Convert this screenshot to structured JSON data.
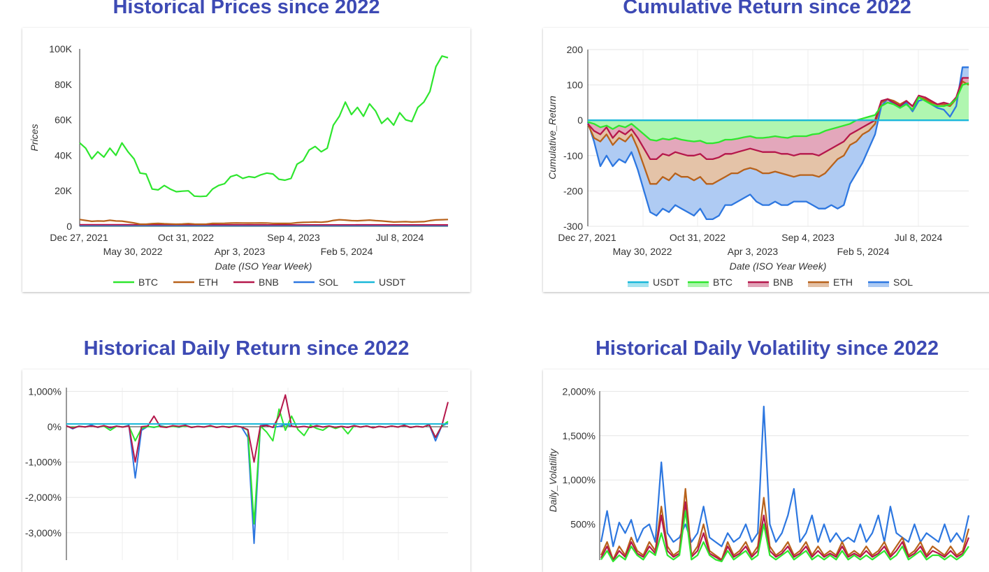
{
  "titles": {
    "prices": "Historical Prices since 2022",
    "cumret": "Cumulative Return since 2022",
    "dret": "Historical Daily Return since 2022",
    "dvol": "Historical Daily Volatility since 2022"
  },
  "colors": {
    "BTC": "#2ee62e",
    "ETH": "#b8621b",
    "BNB": "#b5174b",
    "SOL": "#2d77e0",
    "USDT": "#1ab8d9"
  },
  "x_ticks_upper": [
    "Dec 27, 2021",
    "Oct 31, 2022",
    "Sep 4, 2023",
    "Jul 8, 2024"
  ],
  "x_ticks_lower": [
    "May 30, 2022",
    "Apr 3, 2023",
    "Feb 5, 2024"
  ],
  "chart_data": [
    {
      "type": "line",
      "title": "Historical Prices since 2022",
      "xlabel": "Date (ISO Year Week)",
      "ylabel": "Prices",
      "ylim": [
        0,
        100000
      ],
      "y_ticks": [
        "0",
        "20K",
        "40K",
        "60K",
        "80K",
        "100K"
      ],
      "x_range": [
        "Dec 27, 2021",
        "Dec 2024"
      ],
      "legend": "bottom",
      "legend_order": [
        "BTC",
        "ETH",
        "BNB",
        "SOL",
        "USDT"
      ],
      "series": [
        {
          "name": "BTC",
          "values": [
            47000,
            44000,
            38000,
            42000,
            39000,
            44000,
            40000,
            47000,
            42000,
            38000,
            30000,
            29500,
            21000,
            20500,
            23000,
            21000,
            19500,
            19800,
            20000,
            17000,
            16800,
            17000,
            21000,
            23000,
            24000,
            28000,
            29000,
            27000,
            28000,
            27500,
            29000,
            30000,
            29500,
            26500,
            26000,
            27000,
            35000,
            37000,
            43000,
            45000,
            42000,
            44000,
            57000,
            62000,
            70000,
            63000,
            67000,
            62000,
            69000,
            65000,
            58000,
            61000,
            57000,
            64000,
            60000,
            59000,
            67000,
            70000,
            76000,
            90000,
            96000,
            95000
          ]
        },
        {
          "name": "ETH",
          "values": [
            3800,
            3300,
            2800,
            3000,
            2900,
            3400,
            3000,
            2900,
            2400,
            1900,
            1200,
            1200,
            1500,
            1600,
            1400,
            1300,
            1200,
            1300,
            1500,
            1250,
            1200,
            1250,
            1600,
            1650,
            1700,
            1800,
            1900,
            1850,
            1800,
            1850,
            1900,
            1850,
            1650,
            1600,
            1600,
            1650,
            2000,
            2200,
            2300,
            2400,
            2300,
            2600,
            3300,
            3700,
            3500,
            3200,
            3100,
            3300,
            3500,
            3200,
            3000,
            2700,
            2400,
            2500,
            2600,
            2400,
            2500,
            2600,
            3200,
            3600,
            3700,
            3800
          ]
        }
      ]
    },
    {
      "type": "area",
      "title": "Cumulative Return since 2022",
      "xlabel": "Date (ISO Year Week)",
      "ylabel": "Cumulative_Return",
      "ylim": [
        -300,
        200
      ],
      "y_ticks": [
        "-300",
        "-200",
        "-100",
        "0",
        "100",
        "200"
      ],
      "legend": "bottom",
      "legend_order": [
        "USDT",
        "BTC",
        "BNB",
        "ETH",
        "SOL"
      ],
      "series": [
        {
          "name": "SOL",
          "values": [
            -5,
            -60,
            -130,
            -100,
            -130,
            -110,
            -120,
            -90,
            -140,
            -200,
            -260,
            -270,
            -250,
            -260,
            -240,
            -250,
            -260,
            -270,
            -250,
            -280,
            -280,
            -270,
            -240,
            -240,
            -230,
            -220,
            -210,
            -230,
            -240,
            -240,
            -230,
            -240,
            -240,
            -230,
            -230,
            -230,
            -240,
            -250,
            -250,
            -240,
            -250,
            -240,
            -180,
            -150,
            -120,
            -80,
            -40,
            40,
            60,
            45,
            35,
            50,
            25,
            55,
            60,
            45,
            35,
            30,
            10,
            40,
            150,
            150
          ]
        },
        {
          "name": "ETH",
          "values": [
            -10,
            -50,
            -60,
            -40,
            -70,
            -50,
            -60,
            -40,
            -80,
            -130,
            -180,
            -180,
            -160,
            -170,
            -150,
            -160,
            -160,
            -170,
            -160,
            -180,
            -180,
            -170,
            -160,
            -150,
            -150,
            -140,
            -135,
            -140,
            -150,
            -150,
            -145,
            -150,
            -155,
            -160,
            -155,
            -155,
            -155,
            -160,
            -150,
            -130,
            -110,
            -100,
            -70,
            -60,
            -40,
            -30,
            -10,
            50,
            60,
            55,
            45,
            55,
            40,
            65,
            60,
            50,
            45,
            45,
            40,
            60,
            110,
            100
          ]
        },
        {
          "name": "BNB",
          "values": [
            -10,
            -30,
            -40,
            -20,
            -50,
            -30,
            -40,
            -25,
            -50,
            -80,
            -110,
            -110,
            -95,
            -100,
            -90,
            -95,
            -100,
            -100,
            -95,
            -110,
            -110,
            -105,
            -95,
            -95,
            -90,
            -85,
            -80,
            -85,
            -90,
            -90,
            -90,
            -95,
            -95,
            -100,
            -95,
            -95,
            -95,
            -100,
            -90,
            -80,
            -70,
            -60,
            -40,
            -30,
            -20,
            -10,
            0,
            55,
            60,
            50,
            40,
            55,
            40,
            70,
            65,
            55,
            45,
            50,
            45,
            65,
            120,
            120
          ]
        },
        {
          "name": "BTC",
          "values": [
            -5,
            -10,
            -20,
            -15,
            -25,
            -15,
            -20,
            -10,
            -25,
            -40,
            -55,
            -58,
            -52,
            -55,
            -50,
            -55,
            -58,
            -60,
            -58,
            -65,
            -65,
            -62,
            -55,
            -55,
            -52,
            -48,
            -45,
            -50,
            -50,
            -48,
            -45,
            -48,
            -50,
            -45,
            -45,
            -45,
            -40,
            -38,
            -30,
            -25,
            -20,
            -15,
            -10,
            0,
            5,
            10,
            15,
            40,
            50,
            45,
            35,
            45,
            30,
            65,
            55,
            45,
            40,
            40,
            45,
            60,
            100,
            105
          ]
        },
        {
          "name": "USDT",
          "values": [
            0,
            0,
            0,
            0,
            0,
            0,
            0,
            0,
            0,
            0,
            0,
            0,
            0,
            0,
            0,
            0,
            0,
            0,
            0,
            0,
            0,
            0,
            0,
            0,
            0,
            0,
            0,
            0,
            0,
            0,
            0,
            0,
            0,
            0,
            0,
            0,
            0,
            0,
            0,
            0,
            0,
            0,
            0,
            0,
            0,
            0,
            0,
            0,
            0,
            0,
            0,
            0,
            0,
            0,
            0,
            0,
            0,
            0,
            0,
            0,
            0,
            0
          ]
        }
      ]
    },
    {
      "type": "line",
      "title": "Historical Daily Return since 2022",
      "y_ticks": [
        "-3,000%",
        "-2,000%",
        "-1,000%",
        "0%",
        "1,000%"
      ],
      "ylim": [
        -3700,
        1000
      ],
      "series": [
        {
          "name": "SOL",
          "values": [
            30,
            -60,
            20,
            -10,
            50,
            -20,
            30,
            -40,
            20,
            -10,
            40,
            -1450,
            -100,
            10,
            -20,
            30,
            -10,
            20,
            -15,
            40,
            -20,
            10,
            -10,
            30,
            -20,
            10,
            -15,
            20,
            -10,
            -300,
            -3300,
            30,
            50,
            -20,
            10,
            60,
            20,
            -10,
            10,
            -20,
            30,
            -10,
            20,
            -15,
            10,
            -20,
            30,
            -10,
            20,
            -30,
            10,
            -15,
            20,
            -10,
            40,
            -20,
            10,
            -10,
            60,
            -400,
            20,
            100
          ]
        },
        {
          "name": "BTC",
          "values": [
            10,
            -20,
            10,
            -5,
            20,
            -10,
            15,
            -100,
            10,
            -5,
            20,
            -400,
            -50,
            5,
            -10,
            10,
            -5,
            10,
            -5,
            20,
            -10,
            5,
            -5,
            15,
            -10,
            5,
            -5,
            10,
            -5,
            -100,
            -2750,
            20,
            -150,
            -400,
            500,
            -100,
            300,
            -80,
            -250,
            40,
            -50,
            -100,
            20,
            -50,
            10,
            -200,
            30,
            -10,
            20,
            -30,
            10,
            -15,
            20,
            -10,
            40,
            -20,
            10,
            -10,
            60,
            -300,
            20,
            150
          ]
        },
        {
          "name": "BNB",
          "values": [
            20,
            -40,
            10,
            -5,
            20,
            -10,
            30,
            -20,
            15,
            -10,
            20,
            -1000,
            0,
            20,
            300,
            0,
            -20,
            30,
            10,
            40,
            -20,
            10,
            -10,
            30,
            -20,
            10,
            -20,
            20,
            -10,
            -80,
            -1000,
            20,
            40,
            -20,
            300,
            900,
            10,
            -10,
            10,
            -20,
            30,
            -10,
            20,
            -15,
            10,
            -20,
            30,
            -10,
            20,
            -30,
            10,
            -15,
            20,
            -10,
            40,
            -20,
            10,
            -10,
            60,
            -300,
            20,
            700
          ]
        },
        {
          "name": "USDT",
          "values": [
            80,
            80,
            80,
            80,
            80,
            80,
            80,
            80,
            80,
            80,
            80,
            80,
            80,
            80,
            80,
            80,
            80,
            80,
            80,
            80,
            80,
            80,
            80,
            80,
            80,
            80,
            80,
            80,
            80,
            80,
            80,
            80,
            80,
            80,
            80,
            80,
            80,
            80,
            80,
            80,
            80,
            80,
            80,
            80,
            80,
            80,
            80,
            80,
            80,
            80,
            80,
            80,
            80,
            80,
            80,
            80,
            80,
            80,
            80,
            80,
            80,
            80
          ]
        }
      ]
    },
    {
      "type": "line",
      "title": "Historical Daily Volatility since 2022",
      "ylabel": "Daily_Volatility",
      "y_ticks": [
        "500%",
        "1,000%",
        "1,500%",
        "2,000%"
      ],
      "ylim": [
        0,
        2000
      ],
      "series": [
        {
          "name": "SOL",
          "values": [
            300,
            650,
            250,
            520,
            400,
            550,
            300,
            450,
            500,
            300,
            1200,
            400,
            300,
            350,
            500,
            300,
            400,
            700,
            350,
            300,
            250,
            400,
            300,
            350,
            500,
            300,
            400,
            1830,
            500,
            300,
            400,
            600,
            900,
            300,
            400,
            600,
            300,
            500,
            300,
            400,
            300,
            350,
            300,
            500,
            300,
            400,
            600,
            300,
            700,
            400,
            350,
            300,
            500,
            300,
            400,
            350,
            300,
            500,
            300,
            400,
            300,
            600
          ]
        },
        {
          "name": "ETH",
          "values": [
            150,
            300,
            100,
            250,
            150,
            350,
            200,
            150,
            300,
            200,
            700,
            250,
            150,
            200,
            900,
            150,
            250,
            500,
            200,
            150,
            100,
            300,
            150,
            200,
            300,
            150,
            250,
            800,
            250,
            150,
            200,
            300,
            150,
            200,
            300,
            150,
            250,
            150,
            200,
            150,
            300,
            150,
            200,
            150,
            250,
            150,
            200,
            300,
            150,
            250,
            350,
            150,
            200,
            300,
            150,
            250,
            200,
            150,
            250,
            150,
            200,
            450
          ]
        },
        {
          "name": "BNB",
          "values": [
            120,
            250,
            90,
            200,
            130,
            300,
            170,
            130,
            250,
            170,
            600,
            200,
            130,
            170,
            750,
            130,
            200,
            400,
            170,
            130,
            90,
            250,
            130,
            170,
            250,
            130,
            200,
            600,
            200,
            130,
            170,
            250,
            130,
            170,
            250,
            130,
            200,
            130,
            170,
            130,
            250,
            130,
            170,
            130,
            200,
            130,
            170,
            250,
            130,
            200,
            300,
            130,
            170,
            250,
            130,
            200,
            170,
            130,
            200,
            130,
            170,
            350
          ]
        },
        {
          "name": "BTC",
          "values": [
            100,
            200,
            80,
            150,
            100,
            250,
            150,
            100,
            200,
            150,
            400,
            150,
            100,
            150,
            650,
            100,
            150,
            300,
            150,
            100,
            80,
            200,
            100,
            150,
            200,
            100,
            150,
            500,
            150,
            100,
            150,
            200,
            100,
            150,
            200,
            100,
            150,
            100,
            150,
            100,
            200,
            100,
            150,
            100,
            150,
            100,
            150,
            200,
            100,
            150,
            250,
            100,
            150,
            200,
            100,
            150,
            150,
            100,
            150,
            100,
            150,
            250
          ]
        }
      ]
    }
  ]
}
